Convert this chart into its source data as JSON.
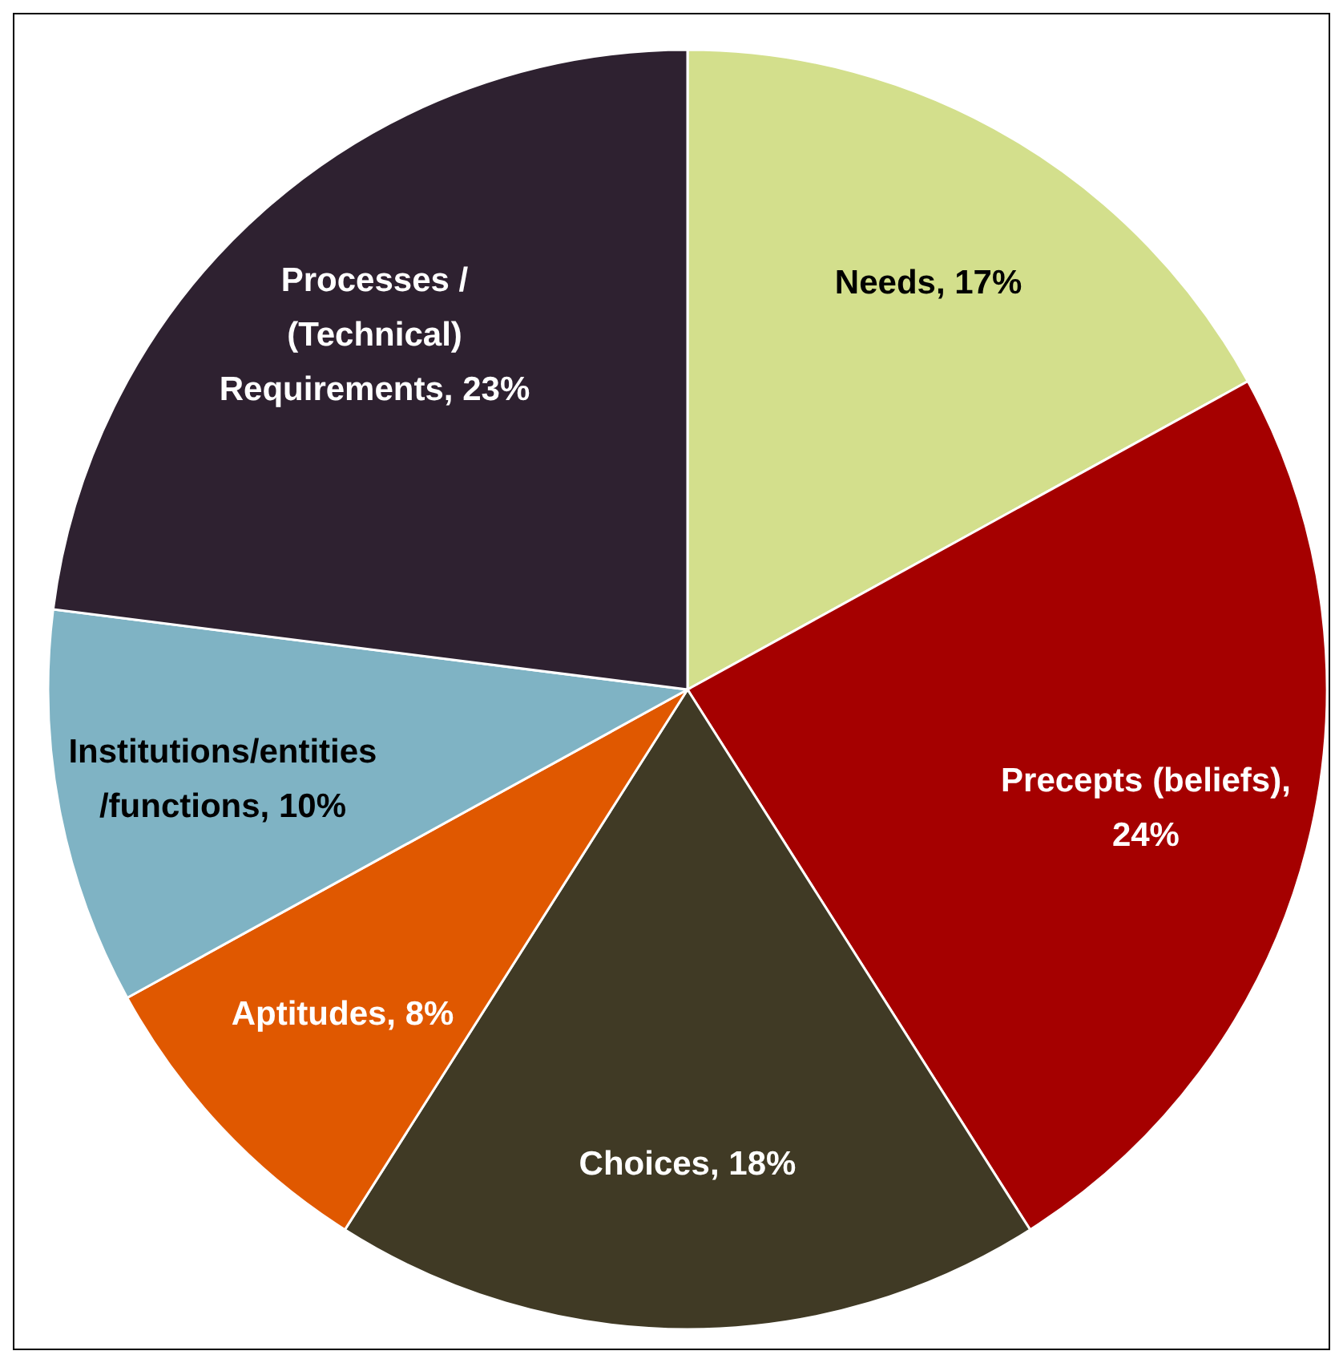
{
  "chart_data": {
    "type": "pie",
    "categories": [
      "Needs, 17%",
      "Precepts (beliefs), 24%",
      "Choices, 18%",
      "Aptitudes, 8%",
      "Institutions/entities /functions, 10%",
      "Processes / (Technical) Requirements, 23%"
    ],
    "values": [
      17,
      24,
      18,
      8,
      10,
      23
    ],
    "colors": [
      "#d3df8c",
      "#a50000",
      "#403a25",
      "#e05800",
      "#7fb3c4",
      "#2e2130"
    ]
  }
}
